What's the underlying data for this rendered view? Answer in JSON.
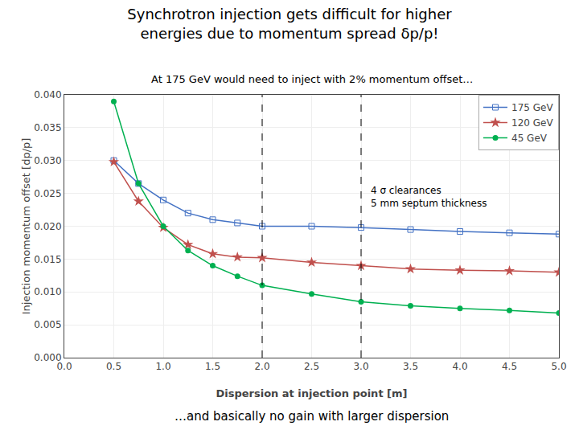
{
  "chart_data": {
    "type": "line",
    "title": "Synchrotron injection gets difficult for higher\nenergies due to momentum spread δp/p!",
    "subtitle": "At 175 GeV would need to inject with 2% momentum offset…",
    "x_label": "Dispersion at injection point [m]",
    "y_label": "Injection momentum offset [dp/p]",
    "xlim": [
      0.0,
      5.0
    ],
    "ylim": [
      0.0,
      0.04
    ],
    "xticks": [
      {
        "value": 0,
        "label": "0.0"
      },
      0.5,
      {
        "value": 1,
        "label": "1.0"
      },
      1.5,
      {
        "value": 2,
        "label": "2.0"
      },
      2.5,
      {
        "value": 3,
        "label": "3.0"
      },
      3.5,
      {
        "value": 4,
        "label": "4.0"
      },
      4.5,
      {
        "value": 5,
        "label": "5.0"
      }
    ],
    "yticks": [
      {
        "value": 0,
        "label": "0.000"
      },
      0.005,
      {
        "value": 0.01,
        "label": "0.010"
      },
      0.015,
      {
        "value": 0.02,
        "label": "0.020"
      },
      0.025,
      {
        "value": 0.03,
        "label": "0.030"
      },
      0.035,
      {
        "value": 0.04,
        "label": "0.040"
      }
    ],
    "grid": true,
    "legend": "upper right",
    "vlines": [
      2.0,
      3.0
    ],
    "annotations": [
      {
        "text": "4 σ clearances\n5 mm septum thickness",
        "x": 3.08,
        "y": 0.0265
      },
      {
        "text": "…and basically no gain with larger dispersion"
      }
    ],
    "x": [
      0.5,
      0.75,
      1.0,
      1.25,
      1.5,
      1.75,
      2.0,
      2.5,
      3.0,
      3.5,
      4.0,
      4.5,
      5.0
    ],
    "series": [
      {
        "name": "175 GeV",
        "color": "#4472C4",
        "marker": "square-open",
        "values": [
          0.03,
          0.0265,
          0.024,
          0.022,
          0.021,
          0.0205,
          0.02,
          0.02,
          0.0198,
          0.0195,
          0.0192,
          0.019,
          0.0188
        ]
      },
      {
        "name": "120 GeV",
        "color": "#C0504D",
        "marker": "star",
        "values": [
          0.0298,
          0.0238,
          0.0198,
          0.0172,
          0.0158,
          0.0153,
          0.0152,
          0.0145,
          0.014,
          0.0135,
          0.0133,
          0.0132,
          0.013
        ]
      },
      {
        "name": "45 GeV",
        "color": "#00B050",
        "marker": "circle",
        "values": [
          0.039,
          0.0265,
          0.02,
          0.0163,
          0.014,
          0.0124,
          0.011,
          0.0097,
          0.0085,
          0.0079,
          0.0075,
          0.0072,
          0.0068
        ]
      }
    ]
  }
}
